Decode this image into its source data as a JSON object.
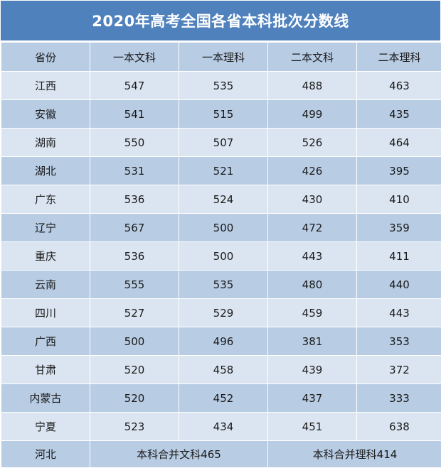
{
  "title": "2020年高考全国各省本科批次分数线",
  "columns": [
    "省份",
    "一本文科",
    "一本理科",
    "二本文科",
    "二本理科"
  ],
  "rows": [
    [
      "江西",
      "547",
      "535",
      "488",
      "463"
    ],
    [
      "安徽",
      "541",
      "515",
      "499",
      "435"
    ],
    [
      "湖南",
      "550",
      "507",
      "526",
      "464"
    ],
    [
      "湖北",
      "531",
      "521",
      "426",
      "395"
    ],
    [
      "广东",
      "536",
      "524",
      "430",
      "410"
    ],
    [
      "辽宁",
      "567",
      "500",
      "472",
      "359"
    ],
    [
      "重庆",
      "536",
      "500",
      "443",
      "411"
    ],
    [
      "云南",
      "555",
      "535",
      "480",
      "440"
    ],
    [
      "四川",
      "527",
      "529",
      "459",
      "443"
    ],
    [
      "广西",
      "500",
      "496",
      "381",
      "353"
    ],
    [
      "甘肃",
      "520",
      "458",
      "439",
      "372"
    ],
    [
      "内蒙古",
      "520",
      "452",
      "437",
      "333"
    ],
    [
      "宁夏",
      "523",
      "434",
      "451",
      "638"
    ]
  ],
  "footer": {
    "province": "河北",
    "liberal": "本科合并文科465",
    "science": "本科合并理科414"
  },
  "colors": {
    "title_bg": "#4f81bd",
    "header_bg": "#b8cce4",
    "row_light": "#dbe5f1",
    "row_dark": "#b8cce4"
  }
}
